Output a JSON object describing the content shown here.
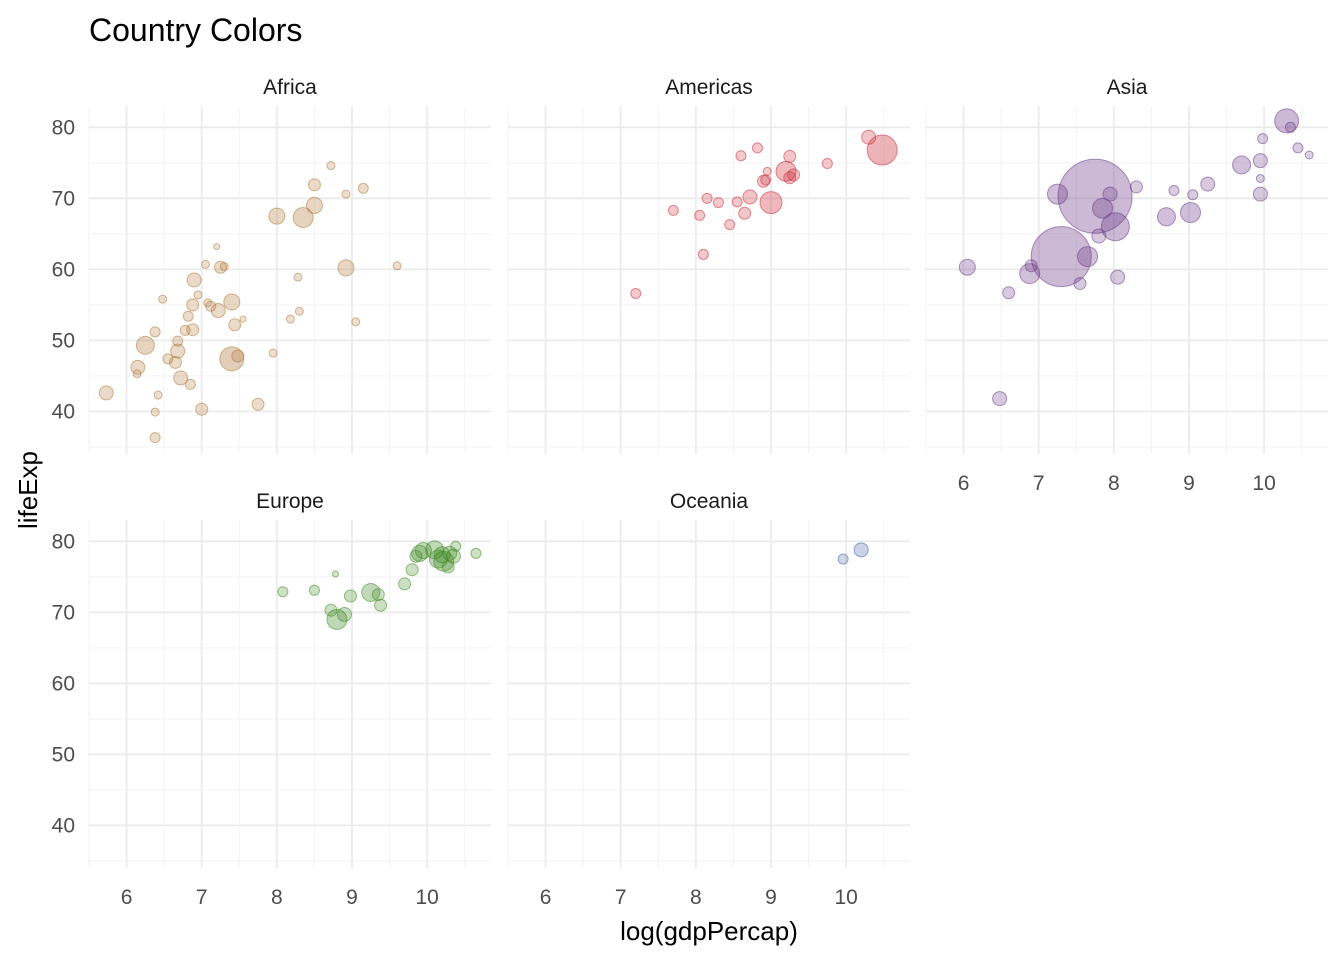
{
  "chart_data": {
    "type": "scatter",
    "title": "Country Colors",
    "xlabel": "log(gdpPercap)",
    "ylabel": "lifeExp",
    "xlim": [
      5.5,
      10.85
    ],
    "ylim": [
      34,
      83
    ],
    "x_ticks": [
      6,
      7,
      8,
      9,
      10
    ],
    "y_ticks": [
      40,
      50,
      60,
      70,
      80
    ],
    "grid": true,
    "legend": "none",
    "colors": {
      "Africa": "#b07a3c",
      "Americas": "#cc2e3a",
      "Asia": "#6e3c8a",
      "Europe": "#3e8a22",
      "Oceania": "#4460a8"
    },
    "facets": [
      {
        "name": "Africa",
        "points": [
          {
            "x": 5.73,
            "y": 42.6,
            "size": 7
          },
          {
            "x": 6.25,
            "y": 49.3,
            "size": 9
          },
          {
            "x": 6.15,
            "y": 46.2,
            "size": 7
          },
          {
            "x": 6.14,
            "y": 45.3,
            "size": 4
          },
          {
            "x": 6.38,
            "y": 51.2,
            "size": 5
          },
          {
            "x": 6.38,
            "y": 39.9,
            "size": 4
          },
          {
            "x": 6.38,
            "y": 36.3,
            "size": 5
          },
          {
            "x": 6.42,
            "y": 42.3,
            "size": 4
          },
          {
            "x": 6.48,
            "y": 55.8,
            "size": 4
          },
          {
            "x": 6.55,
            "y": 47.4,
            "size": 5
          },
          {
            "x": 6.65,
            "y": 46.9,
            "size": 6
          },
          {
            "x": 6.68,
            "y": 48.5,
            "size": 7
          },
          {
            "x": 6.68,
            "y": 49.9,
            "size": 5
          },
          {
            "x": 6.72,
            "y": 44.7,
            "size": 7
          },
          {
            "x": 6.78,
            "y": 51.4,
            "size": 5
          },
          {
            "x": 6.82,
            "y": 53.4,
            "size": 5
          },
          {
            "x": 6.85,
            "y": 43.8,
            "size": 5
          },
          {
            "x": 6.88,
            "y": 55.0,
            "size": 6
          },
          {
            "x": 6.88,
            "y": 51.5,
            "size": 6
          },
          {
            "x": 6.9,
            "y": 58.5,
            "size": 7
          },
          {
            "x": 6.95,
            "y": 56.4,
            "size": 4
          },
          {
            "x": 7.0,
            "y": 40.3,
            "size": 6
          },
          {
            "x": 7.05,
            "y": 60.7,
            "size": 4
          },
          {
            "x": 7.08,
            "y": 55.3,
            "size": 4
          },
          {
            "x": 7.12,
            "y": 54.8,
            "size": 5
          },
          {
            "x": 7.2,
            "y": 63.2,
            "size": 3
          },
          {
            "x": 7.22,
            "y": 54.2,
            "size": 7
          },
          {
            "x": 7.25,
            "y": 60.3,
            "size": 6
          },
          {
            "x": 7.3,
            "y": 60.4,
            "size": 4
          },
          {
            "x": 7.4,
            "y": 47.4,
            "size": 12
          },
          {
            "x": 7.4,
            "y": 55.4,
            "size": 8
          },
          {
            "x": 7.44,
            "y": 52.2,
            "size": 6
          },
          {
            "x": 7.48,
            "y": 47.8,
            "size": 6
          },
          {
            "x": 7.55,
            "y": 53.0,
            "size": 3
          },
          {
            "x": 7.75,
            "y": 41.0,
            "size": 6
          },
          {
            "x": 7.95,
            "y": 48.2,
            "size": 4
          },
          {
            "x": 8.0,
            "y": 67.5,
            "size": 8
          },
          {
            "x": 8.18,
            "y": 53.0,
            "size": 4
          },
          {
            "x": 8.28,
            "y": 58.9,
            "size": 4
          },
          {
            "x": 8.3,
            "y": 54.1,
            "size": 4
          },
          {
            "x": 8.35,
            "y": 67.3,
            "size": 10
          },
          {
            "x": 8.5,
            "y": 69.0,
            "size": 8
          },
          {
            "x": 8.5,
            "y": 71.9,
            "size": 6
          },
          {
            "x": 8.72,
            "y": 74.6,
            "size": 4
          },
          {
            "x": 8.92,
            "y": 60.2,
            "size": 8
          },
          {
            "x": 8.92,
            "y": 70.6,
            "size": 4
          },
          {
            "x": 9.05,
            "y": 52.6,
            "size": 4
          },
          {
            "x": 9.15,
            "y": 71.4,
            "size": 5
          },
          {
            "x": 9.6,
            "y": 60.5,
            "size": 4
          }
        ]
      },
      {
        "name": "Americas",
        "points": [
          {
            "x": 7.2,
            "y": 56.6,
            "size": 5
          },
          {
            "x": 7.7,
            "y": 68.3,
            "size": 5
          },
          {
            "x": 8.05,
            "y": 67.6,
            "size": 5
          },
          {
            "x": 8.1,
            "y": 62.1,
            "size": 5
          },
          {
            "x": 8.15,
            "y": 70.0,
            "size": 5
          },
          {
            "x": 8.3,
            "y": 69.4,
            "size": 5
          },
          {
            "x": 8.45,
            "y": 66.3,
            "size": 5
          },
          {
            "x": 8.55,
            "y": 69.5,
            "size": 5
          },
          {
            "x": 8.6,
            "y": 76.0,
            "size": 5
          },
          {
            "x": 8.65,
            "y": 67.9,
            "size": 6
          },
          {
            "x": 8.72,
            "y": 70.2,
            "size": 7
          },
          {
            "x": 8.82,
            "y": 77.1,
            "size": 5
          },
          {
            "x": 8.9,
            "y": 72.4,
            "size": 6
          },
          {
            "x": 8.93,
            "y": 72.6,
            "size": 5
          },
          {
            "x": 8.95,
            "y": 73.8,
            "size": 4
          },
          {
            "x": 9.0,
            "y": 69.4,
            "size": 11
          },
          {
            "x": 9.2,
            "y": 73.8,
            "size": 10
          },
          {
            "x": 9.25,
            "y": 75.9,
            "size": 6
          },
          {
            "x": 9.25,
            "y": 72.9,
            "size": 6
          },
          {
            "x": 9.3,
            "y": 73.3,
            "size": 6
          },
          {
            "x": 9.75,
            "y": 74.9,
            "size": 5
          },
          {
            "x": 10.3,
            "y": 78.6,
            "size": 7
          },
          {
            "x": 10.48,
            "y": 76.8,
            "size": 15
          }
        ]
      },
      {
        "name": "Asia",
        "points": [
          {
            "x": 6.05,
            "y": 60.3,
            "size": 8
          },
          {
            "x": 6.48,
            "y": 41.8,
            "size": 7
          },
          {
            "x": 6.6,
            "y": 56.7,
            "size": 6
          },
          {
            "x": 6.88,
            "y": 59.4,
            "size": 10
          },
          {
            "x": 6.9,
            "y": 60.5,
            "size": 6
          },
          {
            "x": 7.25,
            "y": 70.6,
            "size": 10
          },
          {
            "x": 7.3,
            "y": 61.8,
            "size": 30
          },
          {
            "x": 7.55,
            "y": 58.0,
            "size": 6
          },
          {
            "x": 7.65,
            "y": 61.8,
            "size": 10
          },
          {
            "x": 7.75,
            "y": 70.3,
            "size": 37
          },
          {
            "x": 7.8,
            "y": 64.7,
            "size": 7
          },
          {
            "x": 7.85,
            "y": 68.6,
            "size": 10
          },
          {
            "x": 7.95,
            "y": 70.6,
            "size": 7
          },
          {
            "x": 8.02,
            "y": 66.0,
            "size": 14
          },
          {
            "x": 8.05,
            "y": 58.9,
            "size": 7
          },
          {
            "x": 8.3,
            "y": 71.6,
            "size": 6
          },
          {
            "x": 8.7,
            "y": 67.4,
            "size": 9
          },
          {
            "x": 8.8,
            "y": 71.1,
            "size": 5
          },
          {
            "x": 9.02,
            "y": 68.0,
            "size": 10
          },
          {
            "x": 9.05,
            "y": 70.5,
            "size": 5
          },
          {
            "x": 9.25,
            "y": 72.0,
            "size": 7
          },
          {
            "x": 9.7,
            "y": 74.7,
            "size": 9
          },
          {
            "x": 9.95,
            "y": 75.3,
            "size": 7
          },
          {
            "x": 9.95,
            "y": 72.8,
            "size": 4
          },
          {
            "x": 9.95,
            "y": 70.6,
            "size": 7
          },
          {
            "x": 9.98,
            "y": 78.4,
            "size": 5
          },
          {
            "x": 10.3,
            "y": 80.9,
            "size": 12
          },
          {
            "x": 10.35,
            "y": 80.0,
            "size": 5
          },
          {
            "x": 10.45,
            "y": 77.1,
            "size": 5
          },
          {
            "x": 10.6,
            "y": 76.1,
            "size": 4
          }
        ]
      },
      {
        "name": "Europe",
        "points": [
          {
            "x": 8.08,
            "y": 72.9,
            "size": 5
          },
          {
            "x": 8.5,
            "y": 73.1,
            "size": 5
          },
          {
            "x": 8.72,
            "y": 70.3,
            "size": 6
          },
          {
            "x": 8.78,
            "y": 75.4,
            "size": 3
          },
          {
            "x": 8.8,
            "y": 69.0,
            "size": 10
          },
          {
            "x": 8.9,
            "y": 69.7,
            "size": 7
          },
          {
            "x": 8.98,
            "y": 72.3,
            "size": 6
          },
          {
            "x": 9.25,
            "y": 72.8,
            "size": 9
          },
          {
            "x": 9.35,
            "y": 72.5,
            "size": 6
          },
          {
            "x": 9.38,
            "y": 71.0,
            "size": 6
          },
          {
            "x": 9.7,
            "y": 74.0,
            "size": 6
          },
          {
            "x": 9.8,
            "y": 76.0,
            "size": 6
          },
          {
            "x": 9.85,
            "y": 77.9,
            "size": 6
          },
          {
            "x": 9.9,
            "y": 78.3,
            "size": 8
          },
          {
            "x": 9.95,
            "y": 78.7,
            "size": 8
          },
          {
            "x": 10.1,
            "y": 78.8,
            "size": 9
          },
          {
            "x": 10.15,
            "y": 77.5,
            "size": 9
          },
          {
            "x": 10.2,
            "y": 78.1,
            "size": 8
          },
          {
            "x": 10.22,
            "y": 77.2,
            "size": 10
          },
          {
            "x": 10.28,
            "y": 76.4,
            "size": 6
          },
          {
            "x": 10.3,
            "y": 78.3,
            "size": 7
          },
          {
            "x": 10.35,
            "y": 77.9,
            "size": 7
          },
          {
            "x": 10.38,
            "y": 79.3,
            "size": 5
          },
          {
            "x": 10.65,
            "y": 78.3,
            "size": 5
          }
        ]
      },
      {
        "name": "Oceania",
        "points": [
          {
            "x": 9.96,
            "y": 77.5,
            "size": 5
          },
          {
            "x": 10.2,
            "y": 78.8,
            "size": 7
          }
        ]
      }
    ]
  }
}
